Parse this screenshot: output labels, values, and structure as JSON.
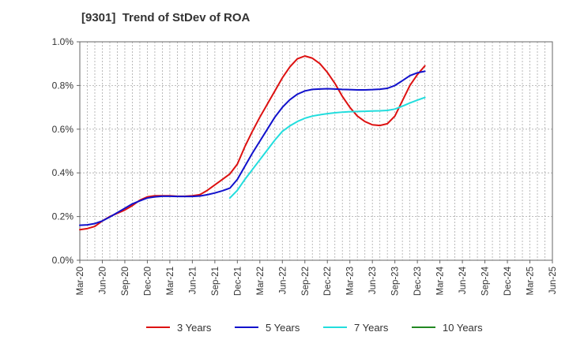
{
  "chart_data": {
    "type": "line",
    "title": "[9301]  Trend of StDev of ROA",
    "xlabel": "",
    "ylabel": "",
    "ylim": [
      0,
      1.0
    ],
    "y_ticks": [
      "0.0%",
      "0.2%",
      "0.4%",
      "0.6%",
      "0.8%",
      "1.0%"
    ],
    "y_tick_values": [
      0,
      0.2,
      0.4,
      0.6,
      0.8,
      1.0
    ],
    "x_ticks": [
      "Mar-20",
      "Jun-20",
      "Sep-20",
      "Dec-20",
      "Mar-21",
      "Jun-21",
      "Sep-21",
      "Dec-21",
      "Mar-22",
      "Jun-22",
      "Sep-22",
      "Dec-22",
      "Mar-23",
      "Jun-23",
      "Sep-23",
      "Dec-23",
      "Mar-24",
      "Jun-24",
      "Sep-24",
      "Dec-24",
      "Mar-25",
      "Jun-25"
    ],
    "grid": true,
    "legend_position": "bottom",
    "series": [
      {
        "name": "3 Years",
        "color": "#dd1111",
        "points": [
          [
            0,
            0.14
          ],
          [
            1,
            0.145
          ],
          [
            2,
            0.155
          ],
          [
            3,
            0.18
          ],
          [
            4,
            0.2
          ],
          [
            5,
            0.215
          ],
          [
            6,
            0.23
          ],
          [
            7,
            0.25
          ],
          [
            8,
            0.275
          ],
          [
            9,
            0.29
          ],
          [
            10,
            0.295
          ],
          [
            11,
            0.295
          ],
          [
            12,
            0.295
          ],
          [
            13,
            0.293
          ],
          [
            14,
            0.293
          ],
          [
            15,
            0.295
          ],
          [
            16,
            0.3
          ],
          [
            17,
            0.32
          ],
          [
            18,
            0.345
          ],
          [
            19,
            0.37
          ],
          [
            20,
            0.395
          ],
          [
            21,
            0.44
          ],
          [
            22,
            0.52
          ],
          [
            23,
            0.59
          ],
          [
            24,
            0.655
          ],
          [
            25,
            0.715
          ],
          [
            26,
            0.775
          ],
          [
            27,
            0.835
          ],
          [
            28,
            0.885
          ],
          [
            29,
            0.922
          ],
          [
            30,
            0.935
          ],
          [
            31,
            0.925
          ],
          [
            32,
            0.9
          ],
          [
            33,
            0.86
          ],
          [
            34,
            0.81
          ],
          [
            35,
            0.75
          ],
          [
            36,
            0.7
          ],
          [
            37,
            0.66
          ],
          [
            38,
            0.635
          ],
          [
            39,
            0.62
          ],
          [
            40,
            0.617
          ],
          [
            41,
            0.625
          ],
          [
            42,
            0.66
          ],
          [
            43,
            0.73
          ],
          [
            44,
            0.8
          ],
          [
            45,
            0.85
          ],
          [
            46,
            0.89
          ]
        ]
      },
      {
        "name": "5 Years",
        "color": "#1111cc",
        "points": [
          [
            0,
            0.16
          ],
          [
            1,
            0.162
          ],
          [
            2,
            0.168
          ],
          [
            3,
            0.18
          ],
          [
            4,
            0.198
          ],
          [
            5,
            0.218
          ],
          [
            6,
            0.238
          ],
          [
            7,
            0.258
          ],
          [
            8,
            0.272
          ],
          [
            9,
            0.285
          ],
          [
            10,
            0.29
          ],
          [
            11,
            0.293
          ],
          [
            12,
            0.293
          ],
          [
            13,
            0.292
          ],
          [
            14,
            0.292
          ],
          [
            15,
            0.292
          ],
          [
            16,
            0.294
          ],
          [
            17,
            0.3
          ],
          [
            18,
            0.308
          ],
          [
            19,
            0.318
          ],
          [
            20,
            0.33
          ],
          [
            21,
            0.37
          ],
          [
            22,
            0.43
          ],
          [
            23,
            0.49
          ],
          [
            24,
            0.545
          ],
          [
            25,
            0.6
          ],
          [
            26,
            0.655
          ],
          [
            27,
            0.7
          ],
          [
            28,
            0.735
          ],
          [
            29,
            0.76
          ],
          [
            30,
            0.775
          ],
          [
            31,
            0.782
          ],
          [
            32,
            0.784
          ],
          [
            33,
            0.785
          ],
          [
            34,
            0.784
          ],
          [
            35,
            0.782
          ],
          [
            36,
            0.781
          ],
          [
            37,
            0.78
          ],
          [
            38,
            0.78
          ],
          [
            39,
            0.781
          ],
          [
            40,
            0.783
          ],
          [
            41,
            0.787
          ],
          [
            42,
            0.8
          ],
          [
            43,
            0.822
          ],
          [
            44,
            0.845
          ],
          [
            45,
            0.858
          ],
          [
            46,
            0.865
          ]
        ]
      },
      {
        "name": "7 Years",
        "color": "#22dddd",
        "points": [
          [
            20,
            0.285
          ],
          [
            21,
            0.32
          ],
          [
            22,
            0.37
          ],
          [
            23,
            0.415
          ],
          [
            24,
            0.46
          ],
          [
            25,
            0.505
          ],
          [
            26,
            0.55
          ],
          [
            27,
            0.59
          ],
          [
            28,
            0.615
          ],
          [
            29,
            0.635
          ],
          [
            30,
            0.65
          ],
          [
            31,
            0.66
          ],
          [
            32,
            0.666
          ],
          [
            33,
            0.671
          ],
          [
            34,
            0.675
          ],
          [
            35,
            0.678
          ],
          [
            36,
            0.68
          ],
          [
            37,
            0.681
          ],
          [
            38,
            0.682
          ],
          [
            39,
            0.683
          ],
          [
            40,
            0.684
          ],
          [
            41,
            0.686
          ],
          [
            42,
            0.692
          ],
          [
            43,
            0.705
          ],
          [
            44,
            0.72
          ],
          [
            45,
            0.733
          ],
          [
            46,
            0.745
          ]
        ]
      },
      {
        "name": "10 Years",
        "color": "#228822",
        "points": []
      }
    ]
  }
}
